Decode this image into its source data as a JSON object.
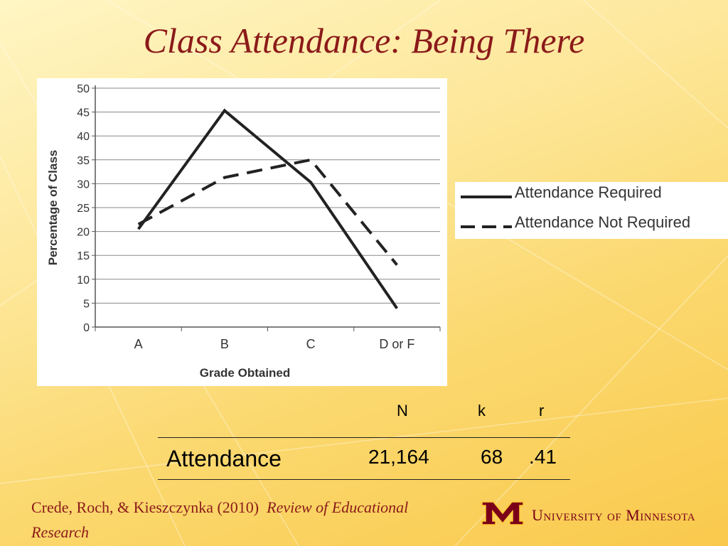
{
  "title": "Class Attendance:  Being There",
  "colors": {
    "title": "#8b1a1a",
    "line": "#222222",
    "brand": "#7a0019",
    "gold": "#ffcc33"
  },
  "chart_data": {
    "type": "line",
    "title": "",
    "xlabel": "Grade Obtained",
    "ylabel": "Percentage of Class",
    "categories": [
      "A",
      "B",
      "C",
      "D or F"
    ],
    "ylim": [
      0,
      50
    ],
    "yticks": [
      0,
      5,
      10,
      15,
      20,
      25,
      30,
      35,
      40,
      45,
      50
    ],
    "yticklabels": [
      "0",
      "5",
      "10",
      "15",
      "20",
      "25",
      "30",
      "35",
      "40",
      "45",
      "50"
    ],
    "grid": true,
    "legend_position": "right-outside",
    "series": [
      {
        "name": "Attendance Required",
        "values": [
          20.5,
          45.3,
          30.3,
          3.9
        ],
        "style": "solid"
      },
      {
        "name": "Attendance Not Required",
        "values": [
          21.5,
          31.3,
          35.0,
          13.0
        ],
        "style": "dashed"
      }
    ]
  },
  "stats_table": {
    "headers": [
      "N",
      "k",
      "r"
    ],
    "row_label": "Attendance",
    "values": [
      "21,164",
      "68",
      ".41"
    ]
  },
  "citation": {
    "authors": "Crede, Roch, & Kieszczynka (2010)",
    "journal": "Review of Educational Research"
  },
  "logo": {
    "text": "University of Minnesota",
    "icon": "block-m-icon"
  }
}
